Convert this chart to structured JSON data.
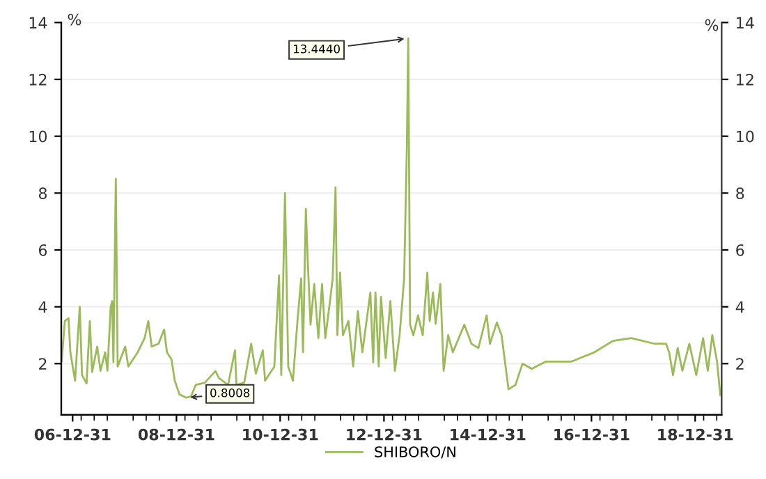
{
  "chart_data": {
    "type": "line",
    "x": [
      "2006-10-15",
      "2006-11-06",
      "2006-12-02",
      "2006-12-15",
      "2007-01-17",
      "2007-02-19",
      "2007-03-07",
      "2007-04-08",
      "2007-05-01",
      "2007-05-17",
      "2007-06-22",
      "2007-07-15",
      "2007-08-17",
      "2007-09-02",
      "2007-09-25",
      "2007-10-05",
      "2007-10-14",
      "2007-10-31",
      "2007-11-13",
      "2008-01-05",
      "2008-01-27",
      "2008-04-02",
      "2008-05-21",
      "2008-06-16",
      "2008-07-09",
      "2008-08-27",
      "2008-10-05",
      "2008-10-25",
      "2008-11-26",
      "2008-12-19",
      "2009-01-21",
      "2009-03-11",
      "2009-04-13",
      "2009-05-15",
      "2009-07-19",
      "2009-10-02",
      "2009-10-25",
      "2009-12-29",
      "2010-02-16",
      "2010-02-26",
      "2010-04-22",
      "2010-06-10",
      "2010-07-13",
      "2010-08-31",
      "2010-09-16",
      "2010-11-20",
      "2010-12-23",
      "2011-01-08",
      "2011-02-03",
      "2011-02-26",
      "2011-03-31",
      "2011-05-02",
      "2011-05-28",
      "2011-06-10",
      "2011-06-30",
      "2011-07-13",
      "2011-08-02",
      "2011-08-28",
      "2011-09-26",
      "2011-10-22",
      "2011-11-14",
      "2011-12-17",
      "2012-01-05",
      "2012-01-25",
      "2012-02-07",
      "2012-02-26",
      "2012-03-17",
      "2012-04-25",
      "2012-05-28",
      "2012-06-30",
      "2012-08-01",
      "2012-09-26",
      "2012-10-16",
      "2012-11-01",
      "2012-11-24",
      "2012-12-10",
      "2013-01-12",
      "2013-02-14",
      "2013-03-18",
      "2013-04-20",
      "2013-05-22",
      "2013-06-10",
      "2013-06-20",
      "2013-07-03",
      "2013-07-26",
      "2013-08-28",
      "2013-09-30",
      "2013-11-01",
      "2013-11-18",
      "2013-12-11",
      "2013-12-30",
      "2014-02-01",
      "2014-02-24",
      "2014-03-28",
      "2014-04-30",
      "2014-07-20",
      "2014-09-08",
      "2014-10-27",
      "2014-12-24",
      "2015-01-16",
      "2015-03-06",
      "2015-04-08",
      "2015-05-27",
      "2015-07-15",
      "2015-09-02",
      "2015-11-06",
      "2016-02-12",
      "2016-08-10",
      "2017-01-20",
      "2017-05-31",
      "2017-10-08",
      "2018-03-19",
      "2018-06-09",
      "2018-07-01",
      "2018-07-28",
      "2018-08-30",
      "2018-10-02",
      "2018-11-20",
      "2019-01-08",
      "2019-02-25",
      "2019-03-30",
      "2019-05-01",
      "2019-06-03",
      "2019-06-26"
    ],
    "series": [
      {
        "name": "SHIBORO/N",
        "color": "#9bbb59",
        "values": [
          2.1,
          3.5,
          3.6,
          2.4,
          1.4,
          4.0,
          1.6,
          1.3,
          3.5,
          1.7,
          2.6,
          1.75,
          2.4,
          1.75,
          4.0,
          4.2,
          2.05,
          8.5,
          1.9,
          2.6,
          1.9,
          2.4,
          2.9,
          3.5,
          2.6,
          2.7,
          3.2,
          2.4,
          2.15,
          1.4,
          0.92,
          0.8008,
          0.85,
          1.25,
          1.33,
          1.74,
          1.5,
          1.25,
          2.47,
          1.25,
          1.33,
          2.7,
          1.65,
          2.47,
          1.4,
          1.9,
          5.1,
          1.6,
          8.0,
          1.9,
          1.4,
          3.5,
          5.0,
          2.4,
          7.45,
          5.65,
          3.37,
          4.8,
          2.9,
          4.8,
          2.9,
          4.2,
          5.0,
          8.2,
          3.0,
          5.2,
          3.0,
          3.5,
          1.9,
          3.85,
          2.4,
          4.5,
          2.05,
          4.5,
          1.9,
          4.35,
          2.2,
          4.2,
          1.75,
          3.0,
          5.0,
          9.6,
          13.444,
          3.37,
          3.0,
          3.7,
          3.0,
          5.2,
          3.5,
          4.5,
          3.4,
          4.8,
          1.75,
          3.0,
          2.4,
          3.37,
          2.7,
          2.55,
          3.7,
          2.7,
          3.45,
          3.0,
          1.1,
          1.25,
          2.0,
          1.82,
          2.07,
          2.07,
          2.4,
          2.8,
          2.9,
          2.7,
          2.7,
          2.4,
          1.6,
          2.55,
          1.75,
          2.7,
          1.6,
          2.9,
          1.75,
          3.0,
          2.07,
          0.9
        ]
      }
    ],
    "xlim": [
      "2006-10-12",
      "2019-07-05"
    ],
    "xticks": [
      {
        "value": "2006-12-31",
        "label": "06-12-31"
      },
      {
        "value": "2008-12-31",
        "label": "08-12-31"
      },
      {
        "value": "2010-12-31",
        "label": "10-12-31"
      },
      {
        "value": "2012-12-31",
        "label": "12-12-31"
      },
      {
        "value": "2014-12-31",
        "label": "14-12-31"
      },
      {
        "value": "2016-12-31",
        "label": "16-12-31"
      },
      {
        "value": "2018-12-31",
        "label": "18-12-31"
      }
    ],
    "ylim": [
      0.2,
      14
    ],
    "yticks": [
      2,
      4,
      6,
      8,
      10,
      12,
      14
    ],
    "y2lim": [
      0.2,
      14
    ],
    "y2ticks": [
      2,
      4,
      6,
      8,
      10,
      12,
      14
    ],
    "ylabel": "%",
    "y2label": "%",
    "annotations": [
      {
        "text": "13.4440",
        "x": "2013-06-20",
        "y": 13.444
      },
      {
        "text": "0.8008",
        "x": "2009-03-11",
        "y": 0.8008
      }
    ],
    "grid": "y",
    "legend": "bottom",
    "marker": "none",
    "line_style": "solid"
  }
}
